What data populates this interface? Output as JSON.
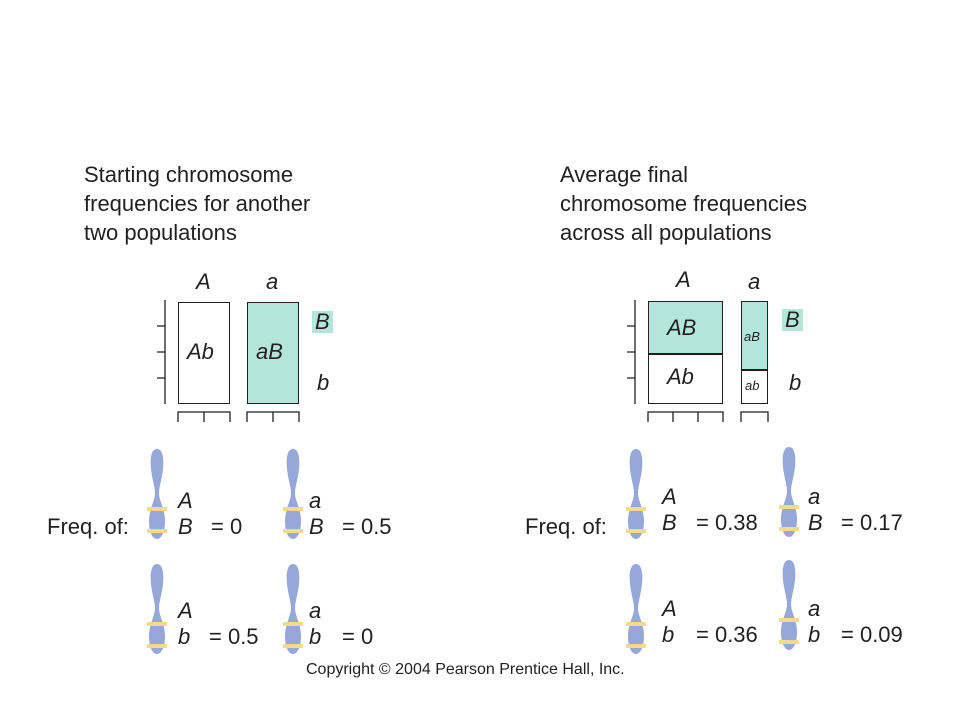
{
  "left": {
    "title": [
      "Starting chromosome",
      "frequencies for another",
      "two populations"
    ],
    "col_labels": [
      "A",
      "a"
    ],
    "row_labels": [
      "B",
      "b"
    ],
    "cells": {
      "Ab": "Ab",
      "aB": "aB"
    },
    "freq_label": "Freq. of:",
    "freqs": [
      {
        "top": "A",
        "bottom": "B",
        "value": "= 0"
      },
      {
        "top": "a",
        "bottom": "B",
        "value": "= 0.5"
      },
      {
        "top": "A",
        "bottom": "b",
        "value": "= 0.5"
      },
      {
        "top": "a",
        "bottom": "b",
        "value": "= 0"
      }
    ]
  },
  "right": {
    "title": [
      "Average final",
      "chromosome frequencies",
      "across all populations"
    ],
    "col_labels": [
      "A",
      "a"
    ],
    "row_labels": [
      "B",
      "b"
    ],
    "cells": {
      "AB": "AB",
      "Ab": "Ab",
      "aB": "aB",
      "ab": "ab"
    },
    "freq_label": "Freq. of:",
    "freqs": [
      {
        "top": "A",
        "bottom": "B",
        "value": "= 0.38"
      },
      {
        "top": "a",
        "bottom": "B",
        "value": "= 0.17"
      },
      {
        "top": "A",
        "bottom": "b",
        "value": "= 0.36"
      },
      {
        "top": "a",
        "bottom": "b",
        "value": "= 0.09"
      }
    ]
  },
  "colors": {
    "teal": "#b3e6da",
    "chromosome": "#95a8d8",
    "band": "#f5d98c"
  },
  "copyright": "Copyright © 2004 Pearson Prentice Hall, Inc."
}
